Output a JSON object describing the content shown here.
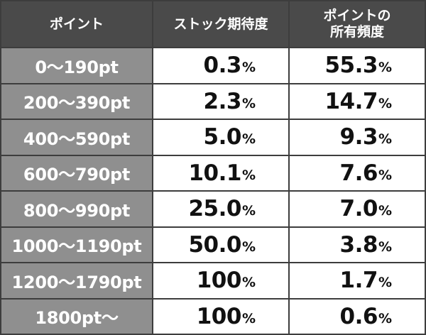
{
  "header": {
    "col_points": "ポイント",
    "col_stock": "ストック期待度",
    "col_freq_line1": "ポイントの",
    "col_freq_line2": "所有頻度"
  },
  "rows": [
    {
      "range": "0～190pt",
      "stock": "0.3",
      "freq": "55.3"
    },
    {
      "range": "200～390pt",
      "stock": "2.3",
      "freq": "14.7"
    },
    {
      "range": "400～590pt",
      "stock": "5.0",
      "freq": "9.3"
    },
    {
      "range": "600～790pt",
      "stock": "10.1",
      "freq": "7.6"
    },
    {
      "range": "800～990pt",
      "stock": "25.0",
      "freq": "7.0"
    },
    {
      "range": "1000～1190pt",
      "stock": "50.0",
      "freq": "3.8"
    },
    {
      "range": "1200～1790pt",
      "stock": "100",
      "freq": "1.7"
    },
    {
      "range": "1800pt～",
      "stock": "100",
      "freq": "0.6"
    }
  ],
  "percent_sign": "%",
  "colors": {
    "header_bg": "#4a4a4a",
    "rowhead_bg": "#8f8f8f",
    "cell_bg": "#ffffff",
    "border": "#3d3d3d"
  }
}
